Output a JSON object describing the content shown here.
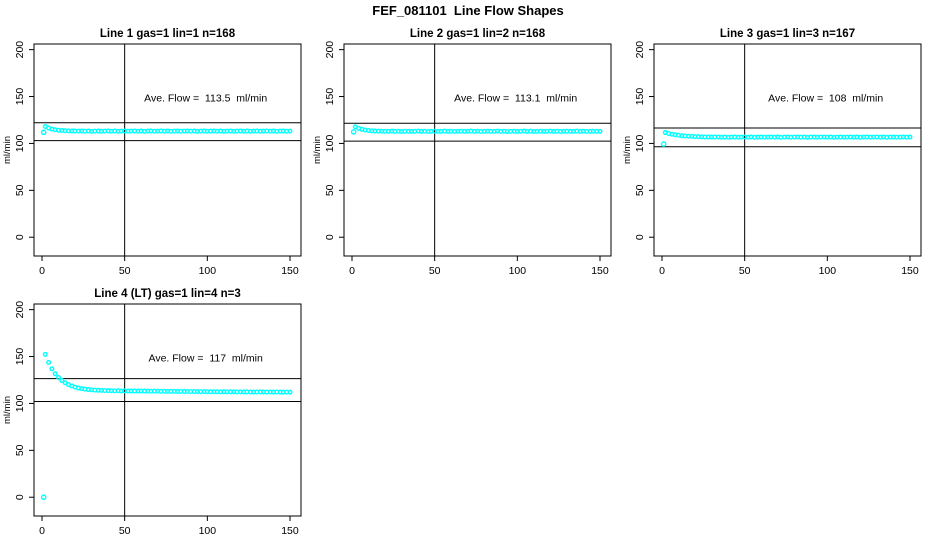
{
  "page": {
    "title": "FEF_081101  Line Flow Shapes",
    "background_color": "#ffffff",
    "axis_color": "#000000"
  },
  "chart_data": [
    {
      "type": "scatter",
      "title": "Line 1 gas=1 lin=1 n=168",
      "ylabel": "ml/min",
      "annotation": "Ave. Flow =  113.5  ml/min",
      "ave_flow_ml_min": 113.5,
      "n_points": 168,
      "grid_position": {
        "row": 0,
        "col": 0
      },
      "xlim": [
        0,
        150
      ],
      "ylim": [
        0,
        200
      ],
      "xticks": [
        0,
        50,
        100,
        150
      ],
      "yticks": [
        0,
        50,
        100,
        150,
        200
      ],
      "grid": false,
      "vline_x": 50,
      "hlines": [
        122,
        103
      ],
      "marker_color": "#00FFFF",
      "annotation_xy": [
        99,
        148
      ],
      "first_points": [
        [
          1,
          111.8
        ]
      ],
      "series": {
        "x0": 2,
        "dx": 2,
        "y": [
          118.0,
          116.4,
          115.3,
          114.6,
          114.1,
          113.8,
          113.5,
          113.4,
          113.3,
          113.2,
          113.1,
          113.3,
          113.0,
          113.2,
          112.9,
          113.1,
          113.2,
          113.0,
          113.1,
          113.3,
          113.0,
          113.2,
          112.9,
          113.1,
          113.2,
          113.0,
          113.1,
          113.3,
          113.0,
          113.2,
          112.9,
          113.1,
          113.2,
          113.0,
          113.1,
          113.3,
          113.0,
          113.2,
          112.9,
          113.1,
          113.2,
          113.0,
          113.1,
          113.3,
          113.0,
          113.2,
          112.9,
          113.1,
          113.2,
          113.0,
          113.1,
          113.3,
          113.0,
          113.2,
          112.9,
          113.1,
          113.2,
          113.0,
          113.1,
          113.3,
          113.0,
          113.2,
          112.9,
          113.1,
          113.2,
          113.0,
          113.1,
          113.3,
          113.0,
          113.2,
          112.9,
          113.1,
          113.2,
          113.0,
          113.1
        ]
      }
    },
    {
      "type": "scatter",
      "title": "Line 2 gas=1 lin=2 n=168",
      "ylabel": "ml/min",
      "annotation": "Ave. Flow =  113.1  ml/min",
      "ave_flow_ml_min": 113.1,
      "n_points": 168,
      "grid_position": {
        "row": 0,
        "col": 1
      },
      "xlim": [
        0,
        150
      ],
      "ylim": [
        0,
        200
      ],
      "xticks": [
        0,
        50,
        100,
        150
      ],
      "yticks": [
        0,
        50,
        100,
        150,
        200
      ],
      "grid": false,
      "vline_x": 50,
      "hlines": [
        121.5,
        102.5
      ],
      "marker_color": "#00FFFF",
      "annotation_xy": [
        99,
        148
      ],
      "first_points": [
        [
          1,
          112.3
        ]
      ],
      "series": {
        "x0": 2,
        "dx": 2,
        "y": [
          117.6,
          116.1,
          115.0,
          114.3,
          113.8,
          113.4,
          113.2,
          113.1,
          113.0,
          112.9,
          112.9,
          113.1,
          112.8,
          113.0,
          112.7,
          112.9,
          113.0,
          112.8,
          112.9,
          113.1,
          112.8,
          113.0,
          112.7,
          112.9,
          113.0,
          112.8,
          112.9,
          113.1,
          112.8,
          113.0,
          112.7,
          112.9,
          113.0,
          112.8,
          112.9,
          113.1,
          112.8,
          113.0,
          112.7,
          112.9,
          113.0,
          112.8,
          112.9,
          113.1,
          112.8,
          113.0,
          112.7,
          112.9,
          113.0,
          112.8,
          112.9,
          113.1,
          112.8,
          113.0,
          112.7,
          112.9,
          113.0,
          112.8,
          112.9,
          113.1,
          112.8,
          113.0,
          112.7,
          112.9,
          113.0,
          112.8,
          112.9,
          113.1,
          112.8,
          113.0,
          112.7,
          112.9,
          113.0,
          112.8,
          112.9
        ]
      }
    },
    {
      "type": "scatter",
      "title": "Line 3 gas=1 lin=3 n=167",
      "ylabel": "ml/min",
      "annotation": "Ave. Flow =  108  ml/min",
      "ave_flow_ml_min": 108,
      "n_points": 167,
      "grid_position": {
        "row": 0,
        "col": 2
      },
      "xlim": [
        0,
        150
      ],
      "ylim": [
        0,
        200
      ],
      "xticks": [
        0,
        50,
        100,
        150
      ],
      "yticks": [
        0,
        50,
        100,
        150,
        200
      ],
      "grid": false,
      "vline_x": 50,
      "hlines": [
        116.5,
        96.5
      ],
      "marker_color": "#00FFFF",
      "annotation_xy": [
        99,
        148
      ],
      "first_points": [
        [
          1,
          99.3
        ]
      ],
      "series": {
        "x0": 2,
        "dx": 2,
        "y": [
          111.6,
          110.6,
          109.8,
          109.2,
          108.7,
          108.2,
          107.9,
          107.7,
          107.5,
          107.3,
          107.2,
          107.0,
          106.9,
          106.9,
          106.8,
          106.7,
          106.9,
          106.6,
          106.8,
          106.5,
          106.7,
          106.8,
          106.6,
          106.7,
          106.9,
          106.6,
          106.8,
          106.5,
          106.7,
          106.8,
          106.6,
          106.7,
          106.9,
          106.6,
          106.8,
          106.5,
          106.7,
          106.8,
          106.6,
          106.7,
          106.9,
          106.6,
          106.8,
          106.5,
          106.7,
          106.8,
          106.6,
          106.7,
          106.9,
          106.6,
          106.8,
          106.5,
          106.7,
          106.8,
          106.6,
          106.7,
          106.9,
          106.6,
          106.8,
          106.5,
          106.7,
          106.8,
          106.6,
          106.7,
          106.9,
          106.6,
          106.8,
          106.5,
          106.7,
          106.8,
          106.6,
          106.7,
          106.9,
          106.6,
          106.8
        ]
      }
    },
    {
      "type": "scatter",
      "title": "Line 4 (LT) gas=1 lin=4 n=3",
      "ylabel": "ml/min",
      "annotation": "Ave. Flow =  117  ml/min",
      "ave_flow_ml_min": 117,
      "n_points": 3,
      "grid_position": {
        "row": 1,
        "col": 0
      },
      "xlim": [
        0,
        150
      ],
      "ylim": [
        0,
        200
      ],
      "xticks": [
        0,
        50,
        100,
        150
      ],
      "yticks": [
        0,
        50,
        100,
        150,
        200
      ],
      "grid": false,
      "vline_x": 50,
      "hlines": [
        126.5,
        102
      ],
      "marker_color": "#00FFFF",
      "annotation_xy": [
        99,
        148
      ],
      "first_points": [
        [
          1,
          0
        ]
      ],
      "series": {
        "x0": 2,
        "dx": 2,
        "y": [
          152.3,
          143.7,
          136.9,
          131.7,
          127.6,
          124.5,
          122.0,
          120.1,
          118.6,
          117.4,
          116.5,
          115.8,
          115.2,
          114.8,
          114.5,
          114.2,
          114.0,
          113.9,
          113.7,
          113.6,
          113.5,
          113.4,
          113.5,
          113.3,
          113.4,
          113.3,
          113.2,
          113.3,
          113.2,
          113.1,
          113.2,
          113.1,
          113.0,
          113.1,
          113.0,
          112.9,
          113.0,
          112.9,
          112.8,
          112.9,
          112.8,
          112.7,
          112.8,
          112.7,
          112.6,
          112.7,
          112.6,
          112.5,
          112.6,
          112.5,
          112.4,
          112.5,
          112.4,
          112.3,
          112.4,
          112.3,
          112.4,
          112.3,
          112.2,
          112.3,
          112.2,
          112.3,
          112.2,
          112.1,
          112.2,
          112.3,
          112.2,
          112.1,
          112.2,
          112.1,
          112.2,
          112.1,
          112.0,
          112.1,
          112.0
        ]
      }
    }
  ]
}
